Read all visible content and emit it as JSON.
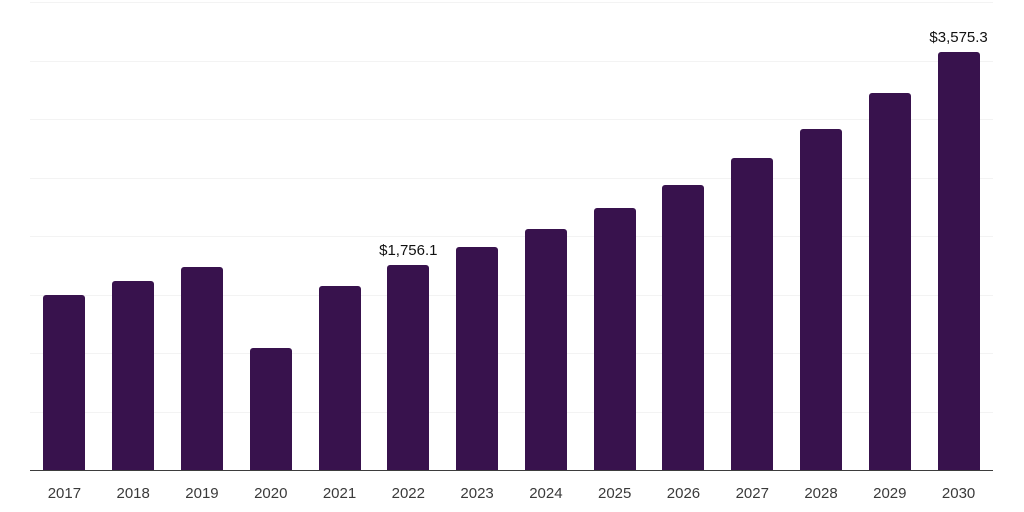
{
  "chart_data": {
    "type": "bar",
    "title": "",
    "xlabel": "",
    "ylabel": "",
    "categories": [
      "2017",
      "2018",
      "2019",
      "2020",
      "2021",
      "2022",
      "2023",
      "2024",
      "2025",
      "2026",
      "2027",
      "2028",
      "2029",
      "2030"
    ],
    "values": [
      1493,
      1613,
      1732,
      1041,
      1570,
      1756.1,
      1903,
      2056,
      2236,
      2440,
      2671,
      2918,
      3225,
      3575.3
    ],
    "data_labels": [
      "",
      "",
      "",
      "",
      "",
      "$1,756.1",
      "",
      "",
      "",
      "",
      "",
      "",
      "",
      "$3,575.3"
    ],
    "ylim": [
      0,
      4000
    ],
    "grid_step": 500,
    "grid": "horizontal-only",
    "legend": "none",
    "y_tick_labels_visible": false,
    "colors": {
      "bar": "#38124D",
      "gridline": "#f3f3f3",
      "axis_line": "#3d3d3d",
      "value_label": "#111111",
      "x_tick_label": "#3a3a3a",
      "background": "#ffffff"
    }
  }
}
